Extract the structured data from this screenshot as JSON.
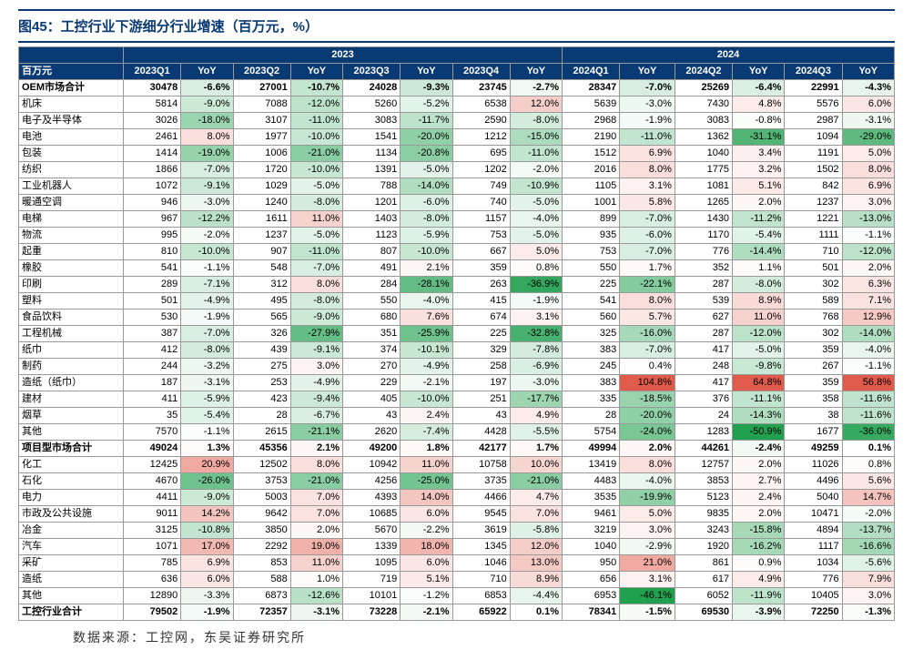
{
  "title": "图45：工控行业下游细分行业增速（百万元，%）",
  "source": "数据来源：工控网，东吴证券研究所",
  "colors": {
    "header_bg": "#0a3a74",
    "grid": "#999999",
    "neg_max": "#21a04f",
    "pos_max": "#e05b4b"
  },
  "header_top": [
    "百万元",
    "2023",
    "2024"
  ],
  "header": [
    "百万元",
    "2023Q1",
    "YoY",
    "2023Q2",
    "YoY",
    "2023Q3",
    "YoY",
    "2023Q4",
    "YoY",
    "2024Q1",
    "YoY",
    "2024Q2",
    "YoY",
    "2024Q3",
    "YoY"
  ],
  "rows": [
    {
      "label": "OEM市场合计",
      "bold": true,
      "cells": [
        30478,
        -6.6,
        27001,
        -10.7,
        24028,
        -9.3,
        23745,
        -2.7,
        28347,
        -7.0,
        25269,
        -6.4,
        22991,
        -4.3
      ]
    },
    {
      "label": "机床",
      "cells": [
        5814,
        -9.0,
        7088,
        -12.0,
        5260,
        -5.2,
        6538,
        12.0,
        5639,
        -3.0,
        7430,
        4.8,
        5576,
        6.0
      ]
    },
    {
      "label": "电子及半导体",
      "cells": [
        3026,
        -18.0,
        3107,
        -11.0,
        3083,
        -11.7,
        2590,
        -8.0,
        2968,
        -1.9,
        3083,
        -0.8,
        2987,
        -3.1
      ]
    },
    {
      "label": "电池",
      "cells": [
        2461,
        8.0,
        1977,
        -10.0,
        1541,
        -20.0,
        1212,
        -15.0,
        2190,
        -11.0,
        1362,
        -31.1,
        1094,
        -29.0
      ]
    },
    {
      "label": "包装",
      "cells": [
        1414,
        -19.0,
        1006,
        -21.0,
        1134,
        -20.8,
        695,
        -11.0,
        1512,
        6.9,
        1040,
        3.4,
        1191,
        5.0
      ]
    },
    {
      "label": "纺织",
      "cells": [
        1866,
        -7.0,
        1720,
        -10.0,
        1391,
        -5.0,
        1202,
        -2.0,
        2016,
        8.0,
        1775,
        3.2,
        1502,
        8.0
      ]
    },
    {
      "label": "工业机器人",
      "cells": [
        1072,
        -9.1,
        1029,
        -5.0,
        788,
        -14.0,
        749,
        -10.9,
        1105,
        3.1,
        1081,
        5.1,
        842,
        6.9
      ]
    },
    {
      "label": "暖通空调",
      "cells": [
        946,
        -3.0,
        1240,
        -8.0,
        1201,
        -6.0,
        740,
        -5.0,
        1001,
        5.8,
        1265,
        2.0,
        1237,
        3.0
      ]
    },
    {
      "label": "电梯",
      "cells": [
        967,
        -12.2,
        1611,
        11.0,
        1403,
        -8.0,
        1157,
        -4.0,
        899,
        -7.0,
        1430,
        -11.2,
        1221,
        -13.0
      ]
    },
    {
      "label": "物流",
      "cells": [
        995,
        -2.0,
        1237,
        -5.0,
        1123,
        -5.9,
        753,
        -5.0,
        935,
        -6.0,
        1170,
        -5.4,
        1111,
        -1.1
      ]
    },
    {
      "label": "起重",
      "cells": [
        810,
        -10.0,
        907,
        -11.0,
        807,
        -10.0,
        667,
        5.0,
        753,
        -7.0,
        776,
        -14.4,
        710,
        -12.0
      ]
    },
    {
      "label": "橡胶",
      "cells": [
        541,
        -1.1,
        548,
        -7.0,
        491,
        2.1,
        359,
        0.8,
        550,
        1.7,
        352,
        1.1,
        501,
        2.0
      ]
    },
    {
      "label": "印刷",
      "cells": [
        289,
        -7.1,
        312,
        8.0,
        284,
        -28.1,
        263,
        -36.9,
        225,
        -22.1,
        287,
        -8.0,
        302,
        6.3
      ]
    },
    {
      "label": "塑料",
      "cells": [
        501,
        -4.9,
        495,
        -8.0,
        550,
        -4.0,
        415,
        -1.9,
        541,
        8.0,
        539,
        8.9,
        589,
        7.1
      ]
    },
    {
      "label": "食品饮料",
      "cells": [
        530,
        -1.9,
        565,
        -9.0,
        680,
        7.6,
        674,
        3.1,
        560,
        5.7,
        627,
        11.0,
        768,
        12.9
      ]
    },
    {
      "label": "工程机械",
      "cells": [
        387,
        -7.0,
        326,
        -27.9,
        351,
        -25.9,
        225,
        -32.8,
        325,
        -16.0,
        287,
        -12.0,
        302,
        -14.0
      ]
    },
    {
      "label": "纸巾",
      "cells": [
        412,
        -8.0,
        439,
        -9.1,
        374,
        -10.1,
        329,
        -7.8,
        383,
        -7.0,
        417,
        -5.0,
        359,
        -4.0
      ]
    },
    {
      "label": "制药",
      "cells": [
        244,
        -3.2,
        275,
        3.0,
        270,
        -4.9,
        258,
        -6.9,
        245,
        0.4,
        248,
        -9.8,
        267,
        -1.1
      ]
    },
    {
      "label": "造纸（纸巾）",
      "cells": [
        187,
        -3.1,
        253,
        -4.9,
        229,
        -2.1,
        197,
        -3.0,
        383,
        104.8,
        417,
        64.8,
        359,
        56.8
      ]
    },
    {
      "label": "建材",
      "cells": [
        411,
        -5.9,
        423,
        -9.4,
        405,
        -10.0,
        251,
        -17.7,
        335,
        -18.5,
        376,
        -11.1,
        358,
        -11.6
      ]
    },
    {
      "label": "烟草",
      "cells": [
        35,
        -5.4,
        28,
        -6.7,
        43,
        2.4,
        43,
        4.9,
        28,
        -20.0,
        24,
        -14.3,
        38,
        -11.6
      ]
    },
    {
      "label": "其他",
      "cells": [
        7570,
        -1.1,
        2615,
        -21.1,
        2620,
        -7.4,
        4428,
        -5.5,
        5754,
        -24.0,
        1283,
        -50.9,
        1677,
        -36.0
      ]
    },
    {
      "label": "项目型市场合计",
      "bold": true,
      "cells": [
        49024,
        1.3,
        45356,
        2.1,
        49200,
        1.8,
        42177,
        1.7,
        49994,
        2.0,
        44261,
        -2.4,
        49259,
        0.1
      ]
    },
    {
      "label": "化工",
      "cells": [
        12425,
        20.9,
        12502,
        8.0,
        10942,
        11.0,
        10758,
        10.0,
        13419,
        8.0,
        12757,
        2.0,
        11026,
        0.8
      ]
    },
    {
      "label": "石化",
      "cells": [
        4670,
        -26.0,
        3753,
        -21.0,
        4256,
        -25.0,
        3735,
        -21.0,
        4483,
        -4.0,
        3853,
        2.7,
        4496,
        5.6
      ]
    },
    {
      "label": "电力",
      "cells": [
        4411,
        -9.0,
        5003,
        7.0,
        4393,
        14.0,
        4466,
        4.7,
        3535,
        -19.9,
        5123,
        2.4,
        5040,
        14.7
      ]
    },
    {
      "label": "市政及公共设施",
      "cells": [
        9011,
        14.2,
        9642,
        7.0,
        10685,
        6.0,
        9545,
        7.0,
        9461,
        5.0,
        9835,
        2.0,
        10471,
        -2.0
      ]
    },
    {
      "label": "冶金",
      "cells": [
        3125,
        -10.8,
        3850,
        2.0,
        5670,
        -2.2,
        3619,
        -5.8,
        3219,
        3.0,
        3243,
        -15.8,
        4894,
        -13.7
      ]
    },
    {
      "label": "汽车",
      "cells": [
        1071,
        17.0,
        2292,
        19.0,
        1339,
        18.0,
        1345,
        12.0,
        1040,
        -2.9,
        1920,
        -16.2,
        1117,
        -16.6
      ]
    },
    {
      "label": "采矿",
      "cells": [
        785,
        6.9,
        853,
        11.0,
        1095,
        6.0,
        1046,
        13.0,
        950,
        21.0,
        861,
        0.9,
        1034,
        -5.6
      ]
    },
    {
      "label": "造纸",
      "cells": [
        636,
        6.0,
        588,
        1.0,
        719,
        5.1,
        710,
        8.9,
        656,
        3.1,
        617,
        4.9,
        776,
        7.9
      ]
    },
    {
      "label": "其他",
      "cells": [
        12890,
        -3.3,
        6873,
        -12.6,
        10101,
        -1.2,
        6853,
        -4.4,
        6953,
        -46.1,
        6052,
        -11.9,
        10405,
        3.0
      ]
    },
    {
      "label": "工控行业合计",
      "bold": true,
      "cells": [
        79502,
        -1.9,
        72357,
        -3.1,
        73228,
        -2.1,
        65922,
        0.1,
        78341,
        -1.5,
        69530,
        -3.9,
        72250,
        -1.3
      ]
    }
  ]
}
